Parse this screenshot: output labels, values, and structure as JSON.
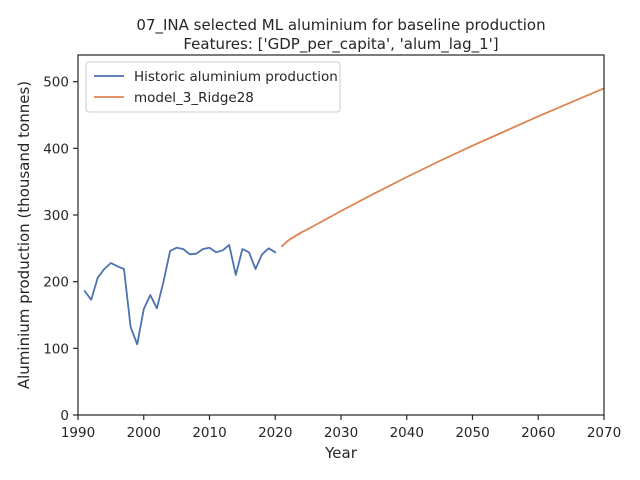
{
  "chart_data": {
    "type": "line",
    "title": "07_INA selected ML aluminium for baseline production",
    "subtitle": "Features: ['GDP_per_capita', 'alum_lag_1']",
    "xlabel": "Year",
    "ylabel": "Aluminium production (thousand tonnes)",
    "xlim": [
      1990,
      2070
    ],
    "ylim": [
      0,
      540
    ],
    "xticks": [
      1990,
      2000,
      2010,
      2020,
      2030,
      2040,
      2050,
      2060,
      2070
    ],
    "yticks": [
      0,
      100,
      200,
      300,
      400,
      500
    ],
    "grid": false,
    "legend_position": "upper-left",
    "series": [
      {
        "name": "Historic aluminium production",
        "color": "#4c72b0",
        "x": [
          1991,
          1992,
          1993,
          1994,
          1995,
          1996,
          1997,
          1998,
          1999,
          2000,
          2001,
          2002,
          2003,
          2004,
          2005,
          2006,
          2007,
          2008,
          2009,
          2010,
          2011,
          2012,
          2013,
          2014,
          2015,
          2016,
          2017,
          2018,
          2019,
          2020
        ],
        "y": [
          186,
          173,
          206,
          219,
          228,
          223,
          219,
          132,
          106,
          159,
          180,
          160,
          200,
          246,
          251,
          249,
          241,
          242,
          249,
          251,
          244,
          247,
          255,
          210,
          249,
          244,
          219,
          241,
          250,
          244
        ]
      },
      {
        "name": "model_3_Ridge28",
        "color": "#dd8452",
        "x": [
          2021,
          2022,
          2023,
          2024,
          2025,
          2030,
          2035,
          2040,
          2045,
          2050,
          2055,
          2060,
          2065,
          2070
        ],
        "y": [
          253,
          262,
          268,
          274,
          279,
          306,
          332,
          357,
          381,
          404,
          426,
          448,
          469,
          490
        ]
      }
    ]
  }
}
